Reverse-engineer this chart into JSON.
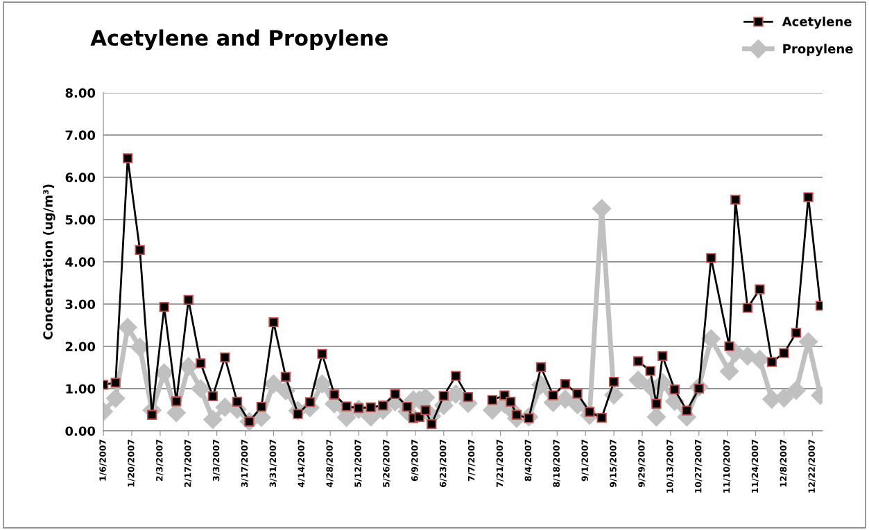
{
  "chart_data": {
    "type": "line",
    "title": "Acetylene and Propylene",
    "ylabel": "Concentration (ug/m³)",
    "x": [
      "2007-01-06",
      "2007-01-12",
      "2007-01-18",
      "2007-01-24",
      "2007-01-30",
      "2007-02-05",
      "2007-02-11",
      "2007-02-17",
      "2007-02-23",
      "2007-03-01",
      "2007-03-07",
      "2007-03-13",
      "2007-03-19",
      "2007-03-25",
      "2007-03-31",
      "2007-04-06",
      "2007-04-12",
      "2007-04-18",
      "2007-04-24",
      "2007-04-30",
      "2007-05-06",
      "2007-05-12",
      "2007-05-18",
      "2007-05-24",
      "2007-05-30",
      "2007-06-05",
      "2007-06-08",
      "2007-06-11",
      "2007-06-14",
      "2007-06-17",
      "2007-06-23",
      "2007-06-29",
      "2007-07-05",
      "2007-07-11",
      "2007-07-17",
      "2007-07-23",
      "2007-07-26",
      "2007-07-29",
      "2007-08-04",
      "2007-08-10",
      "2007-08-16",
      "2007-08-22",
      "2007-08-28",
      "2007-09-03",
      "2007-09-09",
      "2007-09-15",
      "2007-09-21",
      "2007-09-27",
      "2007-10-03",
      "2007-10-06",
      "2007-10-09",
      "2007-10-15",
      "2007-10-21",
      "2007-10-27",
      "2007-11-02",
      "2007-11-11",
      "2007-11-14",
      "2007-11-20",
      "2007-11-26",
      "2007-12-02",
      "2007-12-08",
      "2007-12-14",
      "2007-12-20",
      "2007-12-26"
    ],
    "series": [
      {
        "name": "Acetylene",
        "color": "#000000",
        "marker": "square",
        "values": [
          1.09,
          1.14,
          6.45,
          4.28,
          0.38,
          2.93,
          0.7,
          3.1,
          1.6,
          0.82,
          1.74,
          0.69,
          0.22,
          0.57,
          2.57,
          1.28,
          0.4,
          0.68,
          1.82,
          0.86,
          0.58,
          0.54,
          0.56,
          0.6,
          0.87,
          0.57,
          0.3,
          0.33,
          0.49,
          0.16,
          0.83,
          1.3,
          0.8,
          null,
          0.73,
          0.84,
          0.69,
          0.38,
          0.3,
          1.51,
          0.84,
          1.11,
          0.88,
          0.45,
          0.31,
          1.16,
          null,
          1.65,
          1.42,
          0.64,
          1.77,
          0.98,
          0.48,
          1.0,
          4.09,
          2.0,
          5.47,
          2.91,
          3.35,
          1.63,
          1.84,
          2.32,
          5.53,
          2.96
        ]
      },
      {
        "name": "Propylene",
        "color": "#c0c0c0",
        "marker": "diamond",
        "values": [
          0.46,
          0.77,
          2.45,
          1.98,
          0.49,
          1.37,
          0.43,
          1.52,
          1.0,
          0.27,
          0.56,
          0.51,
          0.22,
          0.32,
          1.11,
          0.95,
          0.48,
          0.55,
          1.11,
          0.64,
          0.32,
          0.51,
          0.33,
          0.49,
          0.69,
          0.46,
          0.73,
          0.73,
          0.79,
          0.35,
          0.6,
          0.87,
          0.65,
          null,
          0.49,
          0.64,
          0.52,
          0.3,
          0.33,
          1.09,
          0.67,
          0.75,
          0.62,
          0.37,
          5.26,
          0.85,
          null,
          1.2,
          1.05,
          0.33,
          1.14,
          0.7,
          0.33,
          1.04,
          2.18,
          1.41,
          1.85,
          1.77,
          1.69,
          0.75,
          0.78,
          0.96,
          2.11,
          0.84
        ]
      }
    ],
    "xlim": [
      "2007-01-06",
      "2007-12-27"
    ],
    "xticks": [
      {
        "value": "2007-01-06",
        "label": "1/6/2007"
      },
      {
        "value": "2007-01-20",
        "label": "1/20/2007"
      },
      {
        "value": "2007-02-03",
        "label": "2/3/2007"
      },
      {
        "value": "2007-02-17",
        "label": "2/17/2007"
      },
      {
        "value": "2007-03-03",
        "label": "3/3/2007"
      },
      {
        "value": "2007-03-17",
        "label": "3/17/2007"
      },
      {
        "value": "2007-03-31",
        "label": "3/31/2007"
      },
      {
        "value": "2007-04-14",
        "label": "4/14/2007"
      },
      {
        "value": "2007-04-28",
        "label": "4/28/2007"
      },
      {
        "value": "2007-05-12",
        "label": "5/12/2007"
      },
      {
        "value": "2007-05-26",
        "label": "5/26/2007"
      },
      {
        "value": "2007-06-09",
        "label": "6/9/2007"
      },
      {
        "value": "2007-06-23",
        "label": "6/23/2007"
      },
      {
        "value": "2007-07-07",
        "label": "7/7/2007"
      },
      {
        "value": "2007-07-21",
        "label": "7/21/2007"
      },
      {
        "value": "2007-08-04",
        "label": "8/4/2007"
      },
      {
        "value": "2007-08-18",
        "label": "8/18/2007"
      },
      {
        "value": "2007-09-01",
        "label": "9/1/2007"
      },
      {
        "value": "2007-09-15",
        "label": "9/15/2007"
      },
      {
        "value": "2007-09-29",
        "label": "9/29/2007"
      },
      {
        "value": "2007-10-13",
        "label": "10/13/2007"
      },
      {
        "value": "2007-10-27",
        "label": "10/27/2007"
      },
      {
        "value": "2007-11-10",
        "label": "11/10/2007"
      },
      {
        "value": "2007-11-24",
        "label": "11/24/2007"
      },
      {
        "value": "2007-12-08",
        "label": "12/8/2007"
      },
      {
        "value": "2007-12-22",
        "label": "12/22/2007"
      }
    ],
    "ylim": [
      0,
      8
    ],
    "yticks": [
      {
        "value": 0,
        "label": "0.00"
      },
      {
        "value": 1,
        "label": "1.00"
      },
      {
        "value": 2,
        "label": "2.00"
      },
      {
        "value": 3,
        "label": "3.00"
      },
      {
        "value": 4,
        "label": "4.00"
      },
      {
        "value": 5,
        "label": "5.00"
      },
      {
        "value": 6,
        "label": "6.00"
      },
      {
        "value": 7,
        "label": "7.00"
      },
      {
        "value": 8,
        "label": "8.00"
      }
    ],
    "grid": "y",
    "legend": "top right",
    "line_style": "solid"
  }
}
